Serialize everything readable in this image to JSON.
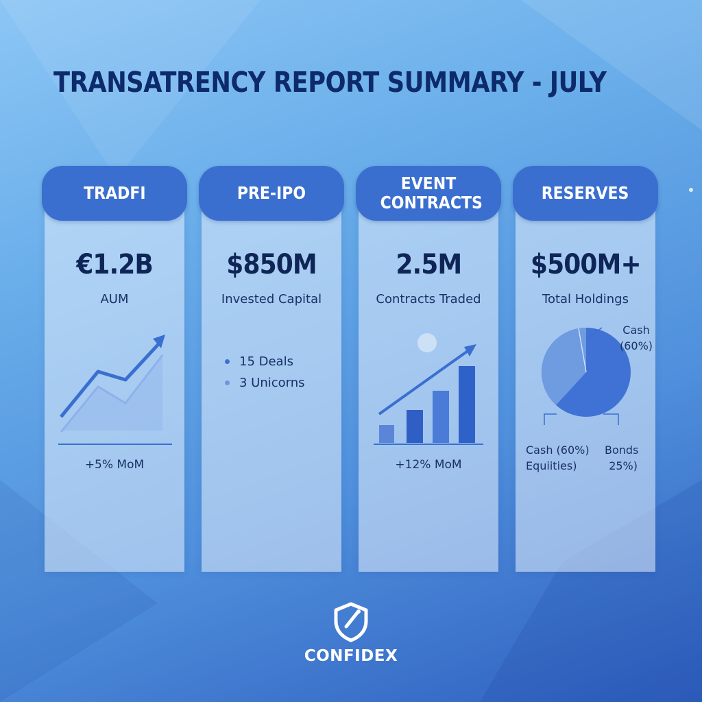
{
  "title": "TRANSATRENCY REPORT SUMMARY - JULY",
  "cards": [
    {
      "header": "TRADFI",
      "metric": "€1.2B",
      "label": "AUM",
      "footer": "+5% MoM",
      "icon": "trend-line-chart-icon"
    },
    {
      "header": "PRE-IPO",
      "metric": "$850M",
      "label": "Invested Capital",
      "bullets": [
        "15 Deals",
        "3 Unicorns"
      ]
    },
    {
      "header": "EVENT CONTRACTS",
      "metric": "2.5M",
      "label": "Contracts Traded",
      "footer": "+12% MoM",
      "icon": "bar-chart-growth-icon"
    },
    {
      "header": "RESERVES",
      "metric": "$500M+",
      "label": "Total Holdings",
      "pie_labels": {
        "top": [
          "Cash",
          "(60%)"
        ],
        "left": [
          "Cash (60%)",
          "Equiities)"
        ],
        "right": [
          "Bonds",
          "25%)"
        ]
      }
    }
  ],
  "logo": {
    "text": "CONFIDEX",
    "icon": "shield-icon"
  },
  "colors": {
    "header": "#3a6fd0",
    "title": "#0d2a6b",
    "pie_main": "#3f72d4",
    "pie_light": "#6f9be0"
  }
}
